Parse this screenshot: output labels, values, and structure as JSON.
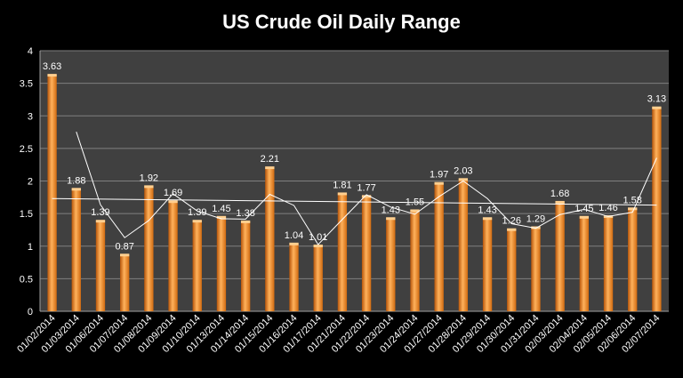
{
  "chart_data": {
    "type": "bar",
    "title": "US Crude Oil Daily Range",
    "xlabel": "",
    "ylabel": "",
    "ylim": [
      0,
      4
    ],
    "yticks": [
      "0",
      "0.5",
      "1",
      "1.5",
      "2",
      "2.5",
      "3",
      "3.5",
      "4"
    ],
    "grid": true,
    "categories": [
      "01/02/2014",
      "01/03/2014",
      "01/06/2014",
      "01/07/2014",
      "01/08/2014",
      "01/09/2014",
      "01/10/2014",
      "01/13/2014",
      "01/14/2014",
      "01/15/2014",
      "01/16/2014",
      "01/17/2014",
      "01/21/2014",
      "01/22/2014",
      "01/23/2014",
      "01/24/2014",
      "01/27/2014",
      "01/28/2014",
      "01/29/2014",
      "01/30/2014",
      "01/31/2014",
      "02/03/2014",
      "02/04/2014",
      "02/05/2014",
      "02/06/2014",
      "02/07/2014"
    ],
    "values": [
      3.63,
      1.88,
      1.39,
      0.87,
      1.92,
      1.69,
      1.39,
      1.45,
      1.38,
      2.21,
      1.04,
      1.01,
      1.81,
      1.77,
      1.43,
      1.55,
      1.97,
      2.03,
      1.43,
      1.26,
      1.29,
      1.68,
      1.45,
      1.46,
      1.58,
      3.13
    ],
    "labels": [
      "3.63",
      "1.88",
      "1.39",
      "0.87",
      "1.92",
      "1.69",
      "1.39",
      "1.45",
      "1.38",
      "2.21",
      "1.04",
      "1.01",
      "1.81",
      "1.77",
      "1.43",
      "1.55",
      "1.97",
      "2.03",
      "1.43",
      "1.26",
      "1.29",
      "1.68",
      "1.45",
      "1.46",
      "1.58",
      "3.13"
    ],
    "moving_average": [
      null,
      2.755,
      1.635,
      1.13,
      1.395,
      1.805,
      1.54,
      1.42,
      1.415,
      1.795,
      1.625,
      1.025,
      1.41,
      1.79,
      1.6,
      1.49,
      1.76,
      2.0,
      1.73,
      1.345,
      1.275,
      1.485,
      1.565,
      1.455,
      1.52,
      2.355
    ],
    "trend_line": {
      "start": 1.73,
      "end": 1.63
    },
    "colors": {
      "bar": "#f7941d",
      "bar_dark": "#c8620a",
      "plot_bg": "#404040",
      "grid": "#7f7f7f",
      "line": "#ffffff"
    }
  }
}
